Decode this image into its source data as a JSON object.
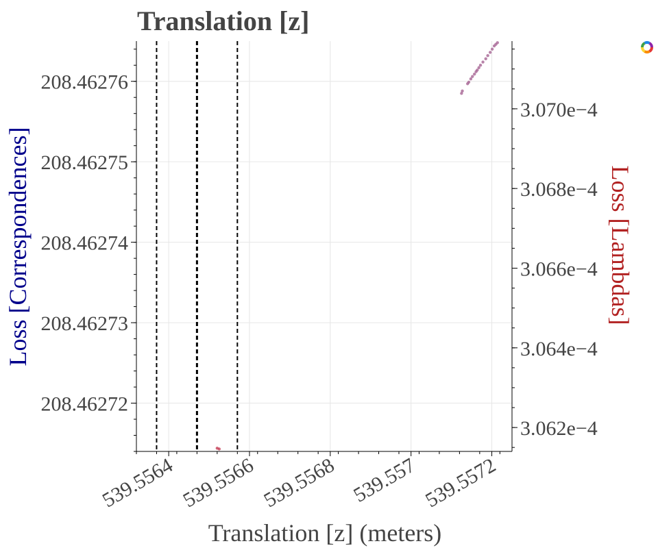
{
  "chart_data": {
    "type": "scatter",
    "title": "Translation [z]",
    "xlabel": "Translation [z] (meters)",
    "ylabel_left": "Loss [Correspondences]",
    "ylabel_right": "Loss [Lambdas]",
    "xlim": [
      539.55632,
      539.55725
    ],
    "ylim_left": [
      208.462714,
      208.462765
    ],
    "ylim_right": [
      0.00030614,
      0.00030717
    ],
    "x_ticks": [
      "539.5564",
      "539.5566",
      "539.5568",
      "539.557",
      "539.5572"
    ],
    "x_tick_values": [
      539.5564,
      539.5566,
      539.5568,
      539.557,
      539.5572
    ],
    "y_left_ticks": [
      "208.46272",
      "208.46273",
      "208.46274",
      "208.46275",
      "208.46276"
    ],
    "y_left_tick_values": [
      208.46272,
      208.46273,
      208.46274,
      208.46275,
      208.46276
    ],
    "y_right_ticks": [
      "3.062e−4",
      "3.064e−4",
      "3.066e−4",
      "3.068e−4",
      "3.070e−4"
    ],
    "y_right_tick_values": [
      0.0003062,
      0.0003064,
      0.0003066,
      0.0003068,
      0.000307
    ],
    "vertical_lines": [
      {
        "x": 539.55637,
        "style": "dashed",
        "weight": "normal"
      },
      {
        "x": 539.55647,
        "style": "dashed",
        "weight": "bold"
      },
      {
        "x": 539.55657,
        "style": "dashed",
        "weight": "normal"
      }
    ],
    "series": [
      {
        "axis": "left",
        "color": "#a05a8c",
        "points": [
          [
            539.557125,
            208.4627585
          ],
          [
            539.557127,
            208.4627588
          ],
          [
            539.55714,
            208.4627597
          ],
          [
            539.557143,
            208.4627599
          ],
          [
            539.557148,
            208.4627603
          ],
          [
            539.557152,
            208.4627606
          ],
          [
            539.557157,
            208.4627609
          ],
          [
            539.557161,
            208.4627612
          ],
          [
            539.557164,
            208.4627614
          ],
          [
            539.557168,
            208.4627617
          ],
          [
            539.557172,
            208.462762
          ],
          [
            539.557178,
            208.4627624
          ],
          [
            539.557185,
            208.4627628
          ],
          [
            539.55719,
            208.4627632
          ],
          [
            539.557196,
            208.4627636
          ],
          [
            539.557201,
            208.462764
          ],
          [
            539.557206,
            208.4627644
          ],
          [
            539.55721,
            208.4627646
          ],
          [
            539.557214,
            208.4627648
          ]
        ]
      },
      {
        "axis": "left",
        "color": "#c0304a",
        "points": [
          [
            539.55652,
            208.4627144
          ],
          [
            539.556525,
            208.4627143
          ]
        ]
      }
    ],
    "grid": true,
    "legend": "none"
  },
  "colors": {
    "title": "#444444",
    "ylabel_left": "#00008b",
    "ylabel_right": "#b22222",
    "tick_text": "#444444"
  },
  "icons": {
    "corner": "plotly-style-logo-icon"
  }
}
